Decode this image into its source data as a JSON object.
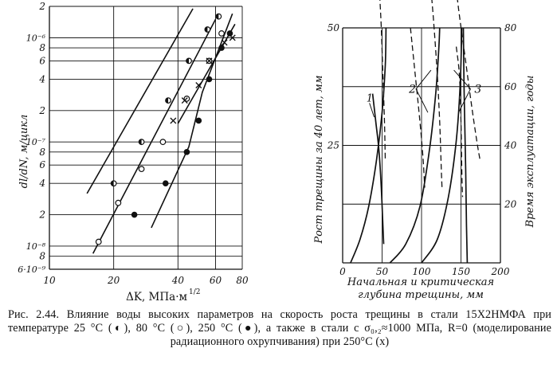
{
  "chart_data": [
    {
      "type": "line",
      "panel": "left",
      "scale": "log-log",
      "xlabel": "ΔK, МПа·м^1/2",
      "xlim": [
        10,
        80
      ],
      "xticks": [
        "10",
        "20",
        "40",
        "60",
        "80"
      ],
      "ylabel": "dl/dN, м/цикл",
      "ylim": [
        6e-09,
        2e-06
      ],
      "yticks": [
        "2",
        "10⁻⁶",
        "8",
        "6",
        "4",
        "2",
        "10⁻⁷",
        "8",
        "6",
        "4",
        "2",
        "10⁻⁸",
        "8",
        "6·10⁻⁹"
      ],
      "grid": true,
      "series": [
        {
          "marker": "half-filled circle",
          "points": [
            [
              20,
              4e-08
            ],
            [
              27,
              1e-07
            ],
            [
              36,
              2.5e-07
            ],
            [
              45,
              6e-07
            ],
            [
              55,
              1.2e-06
            ],
            [
              62,
              1.6e-06
            ]
          ]
        },
        {
          "marker": "open circle",
          "points": [
            [
              17,
              1.1e-08
            ],
            [
              21,
              2.6e-08
            ],
            [
              27,
              5.5e-08
            ],
            [
              34,
              1e-07
            ],
            [
              44,
              2.6e-07
            ],
            [
              56,
              6e-07
            ],
            [
              64,
              1.1e-06
            ]
          ]
        },
        {
          "marker": "filled circle",
          "points": [
            [
              25,
              2e-08
            ],
            [
              35,
              4e-08
            ],
            [
              44,
              8e-08
            ],
            [
              50,
              1.6e-07
            ],
            [
              56,
              4e-07
            ],
            [
              64,
              8e-07
            ],
            [
              70,
              1.1e-06
            ]
          ]
        },
        {
          "marker": "x",
          "points": [
            [
              38,
              1.6e-07
            ],
            [
              43,
              2.5e-07
            ],
            [
              50,
              3.5e-07
            ],
            [
              56,
              6e-07
            ],
            [
              66,
              9e-07
            ],
            [
              72,
              1e-06
            ]
          ]
        }
      ]
    },
    {
      "type": "line",
      "panel": "right",
      "xlabel": "Начальная и критическая глубина трещины, мм",
      "xlim": [
        0,
        200
      ],
      "xticks": [
        "0",
        "50",
        "100",
        "150",
        "200"
      ],
      "ylabel_left": "Рост трещины за 40 лет, мм",
      "ylim_left": [
        0,
        50
      ],
      "yticks_left": [
        "0",
        "25",
        "50"
      ],
      "ylabel_right": "Время эксплуатации, годы",
      "ylim_right": [
        0,
        80
      ],
      "yticks_right": [
        "20",
        "40",
        "60",
        "80"
      ],
      "grid": true,
      "annotations": [
        "1",
        "2",
        "3"
      ],
      "series": [
        {
          "label": "1",
          "style": "solid",
          "points": [
            [
              10,
              0
            ],
            [
              22,
              5
            ],
            [
              33,
              12
            ],
            [
              43,
              22
            ],
            [
              50,
              32
            ],
            [
              54,
              42
            ],
            [
              55,
              50
            ]
          ]
        },
        {
          "label": "1",
          "style": "solid",
          "points": [
            [
              38,
              36
            ],
            [
              42,
              30
            ],
            [
              46,
              24
            ],
            [
              49,
              16
            ],
            [
              51,
              8
            ],
            [
              52,
              4
            ]
          ]
        },
        {
          "label": "2",
          "style": "solid",
          "points": [
            [
              60,
              0
            ],
            [
              80,
              4
            ],
            [
              98,
              12
            ],
            [
              110,
              24
            ],
            [
              118,
              36
            ],
            [
              122,
              46
            ],
            [
              123,
              50
            ]
          ]
        },
        {
          "label": "3",
          "style": "solid",
          "points": [
            [
              100,
              0
            ],
            [
              120,
              5
            ],
            [
              134,
              14
            ],
            [
              144,
              26
            ],
            [
              149,
              38
            ],
            [
              151,
              50
            ]
          ]
        },
        {
          "label": "3",
          "style": "solid",
          "points": [
            [
              153,
              50
            ],
            [
              154,
              36
            ],
            [
              156,
              20
            ],
            [
              157,
              8
            ],
            [
              158,
              0
            ]
          ]
        },
        {
          "label": "1",
          "style": "dashed",
          "points": [
            [
              43,
              70
            ],
            [
              46,
              60
            ],
            [
              49,
              50
            ],
            [
              51,
              40
            ],
            [
              53,
              30
            ],
            [
              54,
              22
            ]
          ]
        },
        {
          "label": "2",
          "style": "dashed",
          "points": [
            [
              110,
              62
            ],
            [
              115,
              52
            ],
            [
              120,
              40
            ],
            [
              123,
              30
            ],
            [
              125,
              20
            ],
            [
              126,
              16
            ]
          ]
        },
        {
          "label": "2",
          "style": "dashed",
          "points": [
            [
              86,
              50
            ],
            [
              92,
              40
            ],
            [
              98,
              30
            ],
            [
              102,
              22
            ],
            [
              104,
              16
            ]
          ]
        },
        {
          "label": "3",
          "style": "dashed",
          "points": [
            [
              140,
              64
            ],
            [
              147,
              54
            ],
            [
              155,
              44
            ],
            [
              163,
              34
            ],
            [
              170,
              26
            ],
            [
              174,
              22
            ]
          ]
        },
        {
          "label": "3",
          "style": "dashed",
          "points": [
            [
              144,
              46
            ],
            [
              148,
              40
            ],
            [
              150,
              30
            ],
            [
              151,
              20
            ],
            [
              152,
              14
            ]
          ]
        }
      ]
    }
  ],
  "caption": {
    "text": "Рис. 2.44. Влияние воды высоких параметров на скорость роста трещины в стали 15Х2НМФА при температуре 25 °С (◐), 80 °С (○), 250 °С (●), а также в стали с σ₀,₂≈1000 МПа, R=0 (моделирование радиационного охрупчивания) при 250°С (x)"
  },
  "colors": {
    "ink": "#111111",
    "background": "#ffffff"
  }
}
